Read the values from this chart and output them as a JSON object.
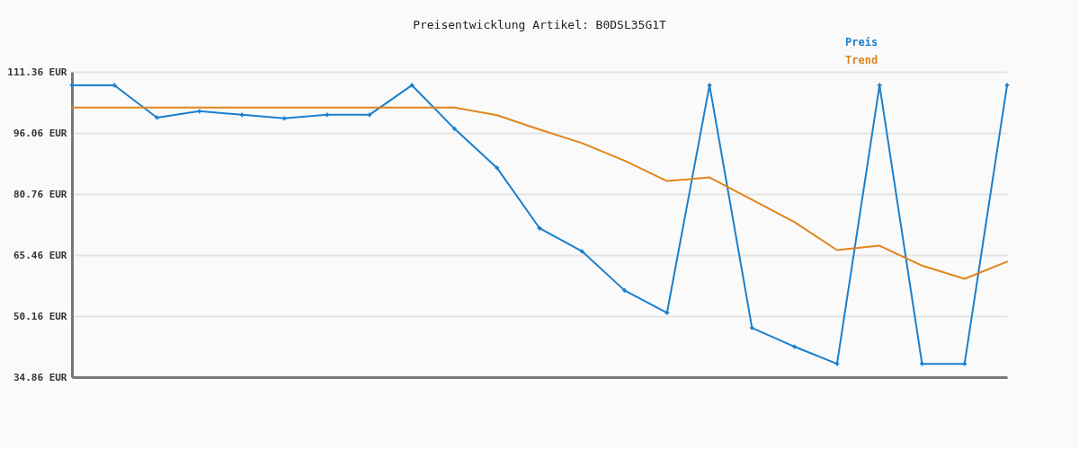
{
  "chart_data": {
    "type": "line",
    "title": "Preisentwicklung Artikel: B0DSL35G1T",
    "categories": [
      null,
      null,
      null,
      null,
      null,
      null,
      null,
      null,
      null,
      null,
      null,
      null,
      null,
      null,
      null,
      null,
      null,
      null,
      null,
      null,
      null,
      null,
      null
    ],
    "series": [
      {
        "name": "Preis",
        "color": "#1a7fcc",
        "marker": "cross",
        "values": [
          108.0,
          108.0,
          99.9,
          101.5,
          100.6,
          99.7,
          100.6,
          100.6,
          108.0,
          97.1,
          87.3,
          72.2,
          66.4,
          56.6,
          51.0,
          108.0,
          47.2,
          42.5,
          38.2,
          108.0,
          38.2,
          38.2,
          108.0
        ]
      },
      {
        "name": "Trend",
        "color": "#e0851a",
        "marker": "none",
        "values": [
          102.4,
          102.4,
          102.4,
          102.4,
          102.4,
          102.4,
          102.4,
          102.4,
          102.4,
          102.4,
          100.5,
          96.9,
          93.5,
          89.1,
          84.0,
          84.9,
          79.3,
          73.7,
          66.7,
          67.8,
          62.8,
          59.5,
          63.8
        ]
      }
    ],
    "ylim": [
      34.86,
      111.36
    ],
    "yticks": [
      {
        "value": 34.86,
        "label": "34.86 EUR"
      },
      {
        "value": 50.16,
        "label": "50.16 EUR"
      },
      {
        "value": 65.46,
        "label": "65.46 EUR"
      },
      {
        "value": 80.76,
        "label": "80.76 EUR"
      },
      {
        "value": 96.06,
        "label": "96.06 EUR"
      },
      {
        "value": 111.36,
        "label": "111.36 EUR"
      }
    ],
    "grid": "y",
    "legend": "top right",
    "tick_labels": "y"
  }
}
